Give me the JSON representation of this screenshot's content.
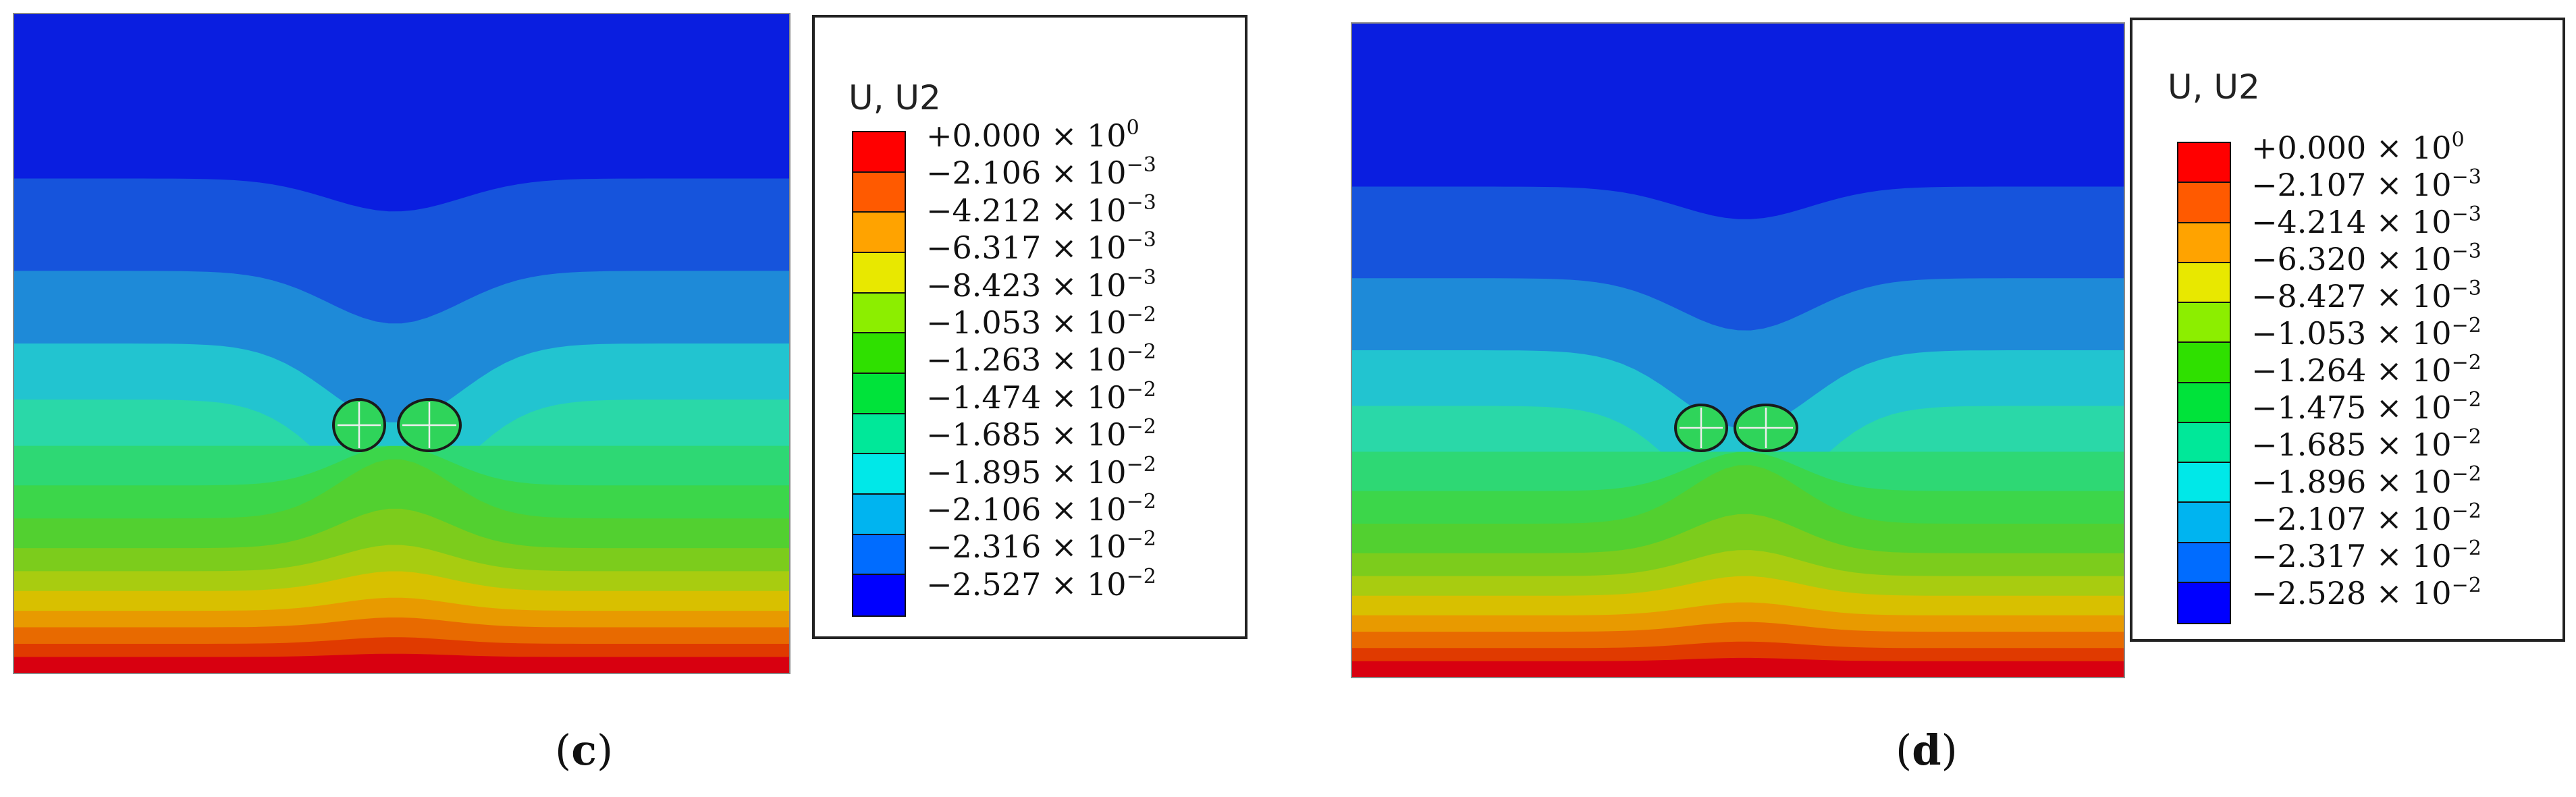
{
  "colors": {
    "frame": "#222222",
    "outline": "#1a1a1a"
  },
  "legend_colors": [
    "#ff0000",
    "#ff5a00",
    "#ffa300",
    "#e8e800",
    "#8cee00",
    "#2fe000",
    "#00e33a",
    "#00e899",
    "#00e8e8",
    "#00b4f0",
    "#006cff",
    "#0000ff"
  ],
  "panels": [
    {
      "id": "c",
      "caption_open": "(",
      "caption_letter": "c",
      "caption_close": ")",
      "legend": {
        "title": "U, U2",
        "labels": [
          {
            "mantissa": "+0.000",
            "exp": "0"
          },
          {
            "mantissa": "−2.106",
            "exp": "−3"
          },
          {
            "mantissa": "−4.212",
            "exp": "−3"
          },
          {
            "mantissa": "−6.317",
            "exp": "−3"
          },
          {
            "mantissa": "−8.423",
            "exp": "−3"
          },
          {
            "mantissa": "−1.053",
            "exp": "−2"
          },
          {
            "mantissa": "−1.263",
            "exp": "−2"
          },
          {
            "mantissa": "−1.474",
            "exp": "−2"
          },
          {
            "mantissa": "−1.685",
            "exp": "−2"
          },
          {
            "mantissa": "−1.895",
            "exp": "−2"
          },
          {
            "mantissa": "−2.106",
            "exp": "−2"
          },
          {
            "mantissa": "−2.316",
            "exp": "−2"
          },
          {
            "mantissa": "−2.527",
            "exp": "−2"
          }
        ]
      }
    },
    {
      "id": "d",
      "caption_open": "(",
      "caption_letter": "d",
      "caption_close": ")",
      "legend": {
        "title": "U, U2",
        "labels": [
          {
            "mantissa": "+0.000",
            "exp": "0"
          },
          {
            "mantissa": "−2.107",
            "exp": "−3"
          },
          {
            "mantissa": "−4.214",
            "exp": "−3"
          },
          {
            "mantissa": "−6.320",
            "exp": "−3"
          },
          {
            "mantissa": "−8.427",
            "exp": "−3"
          },
          {
            "mantissa": "−1.053",
            "exp": "−2"
          },
          {
            "mantissa": "−1.264",
            "exp": "−2"
          },
          {
            "mantissa": "−1.475",
            "exp": "−2"
          },
          {
            "mantissa": "−1.685",
            "exp": "−2"
          },
          {
            "mantissa": "−1.896",
            "exp": "−2"
          },
          {
            "mantissa": "−2.107",
            "exp": "−2"
          },
          {
            "mantissa": "−2.317",
            "exp": "−2"
          },
          {
            "mantissa": "−2.528",
            "exp": "−2"
          }
        ]
      }
    }
  ],
  "times_sign": "×",
  "base": "10"
}
